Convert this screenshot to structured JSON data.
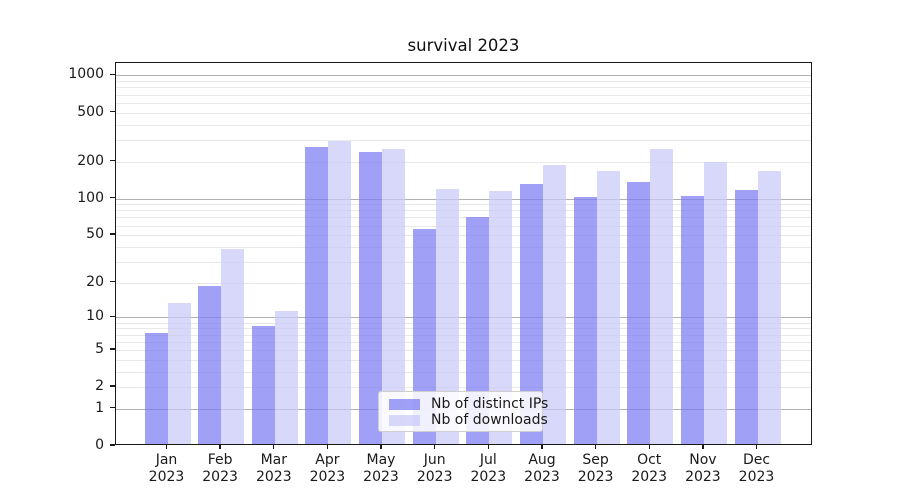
{
  "chart_data": {
    "type": "bar",
    "title": "survival 2023",
    "categories": [
      "Jan 2023",
      "Feb 2023",
      "Mar 2023",
      "Apr 2023",
      "May 2023",
      "Jun 2023",
      "Jul 2023",
      "Aug 2023",
      "Sep 2023",
      "Oct 2023",
      "Nov 2023",
      "Dec 2023"
    ],
    "series": [
      {
        "name": "Nb of distinct IPs",
        "color": "rgba(124,124,243,0.72)",
        "solid_color": "#a1a1f6",
        "values": [
          7,
          18,
          8,
          254,
          229,
          54,
          68,
          126,
          99,
          132,
          101,
          114
        ]
      },
      {
        "name": "Nb of downloads",
        "color": "rgba(201,201,248,0.72)",
        "solid_color": "#d8d8fa",
        "values": [
          13,
          37,
          11,
          281,
          244,
          116,
          111,
          180,
          161,
          246,
          190,
          161
        ]
      }
    ],
    "xlabel": "",
    "ylabel": "",
    "yscale": "log1p",
    "ylim": [
      0,
      1260
    ],
    "yticks": [
      0,
      1,
      2,
      5,
      10,
      20,
      50,
      100,
      200,
      500,
      1000
    ],
    "major_grid_values": [
      1,
      10,
      100,
      1000
    ],
    "minor_grid_values": [
      2,
      3,
      4,
      5,
      6,
      7,
      8,
      9,
      20,
      30,
      40,
      50,
      60,
      70,
      80,
      90,
      200,
      300,
      400,
      500,
      600,
      700,
      800,
      900
    ],
    "grid": true,
    "legend_position": "lower center"
  },
  "colors": {
    "major_grid": "#b2b2b2",
    "minor_grid": "#e9e9e9",
    "spine": "#1a1a1a",
    "text": "#1a1a1a",
    "background": "#ffffff"
  }
}
